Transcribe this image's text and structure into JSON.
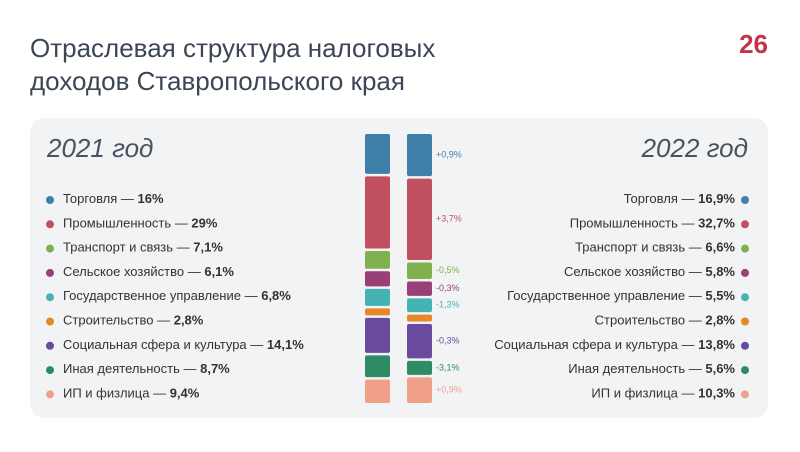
{
  "chart_data": {
    "type": "stacked-bar",
    "title": [
      "Отраслевая структура налоговых",
      "доходов Ставропольского края"
    ],
    "logo": "26",
    "categories": [
      "2021 год",
      "2022 год"
    ],
    "label_separator": " — ",
    "series": [
      {
        "name": "Торговля",
        "color": "#3f7fa8",
        "values": [
          16,
          16.9
        ],
        "value_labels": [
          "16%",
          "16,9%"
        ],
        "change": 0.9,
        "change_label": "+0,9%"
      },
      {
        "name": "Промышленность",
        "color": "#c0505f",
        "values": [
          29,
          32.7
        ],
        "value_labels": [
          "29%",
          "32,7%"
        ],
        "change": 3.7,
        "change_label": "+3,7%"
      },
      {
        "name": "Транспорт и связь",
        "color": "#7fb24f",
        "values": [
          7.1,
          6.6
        ],
        "value_labels": [
          "7,1%",
          "6,6%"
        ],
        "change": -0.5,
        "change_label": "-0,5%"
      },
      {
        "name": "Сельское хозяйство",
        "color": "#9a3f78",
        "values": [
          6.1,
          5.8
        ],
        "value_labels": [
          "6,1%",
          "5,8%"
        ],
        "change": -0.3,
        "change_label": "-0,3%"
      },
      {
        "name": "Государственное управление",
        "color": "#45b3b3",
        "values": [
          6.8,
          5.5
        ],
        "value_labels": [
          "6,8%",
          "5,5%"
        ],
        "change": -1.3,
        "change_label": "-1,3%"
      },
      {
        "name": "Строительство",
        "color": "#e8872a",
        "values": [
          2.8,
          2.8
        ],
        "value_labels": [
          "2,8%",
          "2,8%"
        ],
        "change": null,
        "change_label": null
      },
      {
        "name": "Социальная сфера и культура",
        "color": "#6a4a9e",
        "values": [
          14.1,
          13.8
        ],
        "value_labels": [
          "14,1%",
          "13,8%"
        ],
        "change": -0.3,
        "change_label": "-0,3%"
      },
      {
        "name": "Иная деятельность",
        "color": "#2e8b63",
        "values": [
          8.7,
          5.6
        ],
        "value_labels": [
          "8,7%",
          "5,6%"
        ],
        "change": -3.1,
        "change_label": "-3,1%"
      },
      {
        "name": "ИП и физлица",
        "color": "#f0a08a",
        "values": [
          9.4,
          10.3
        ],
        "value_labels": [
          "9,4%",
          "10,3%"
        ],
        "change": 0.9,
        "change_label": "+0,9%"
      }
    ]
  }
}
